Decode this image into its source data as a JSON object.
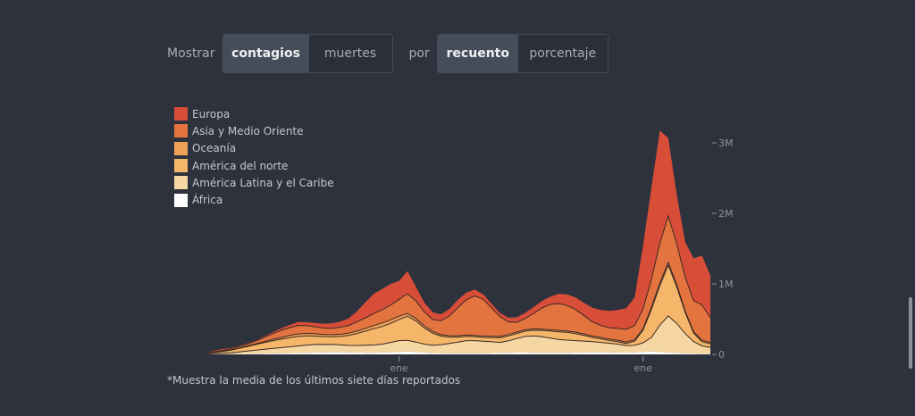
{
  "controls": {
    "show_label": "Mostrar",
    "show_options": [
      {
        "label": "contagios",
        "active": true
      },
      {
        "label": "muertes",
        "active": false
      }
    ],
    "by_label": "por",
    "by_options": [
      {
        "label": "recuento",
        "active": true
      },
      {
        "label": "porcentaje",
        "active": false
      }
    ]
  },
  "footnote": "*Muestra la media de los últimos siete días reportados",
  "chart_data": {
    "type": "area",
    "stacked": true,
    "title": "",
    "xlabel": "",
    "ylabel": "",
    "x": [
      0,
      2,
      4,
      6,
      8,
      10,
      12,
      14,
      16,
      18,
      20,
      22,
      24,
      26,
      28,
      30,
      32,
      34,
      36,
      38,
      40,
      42,
      44,
      46,
      48,
      50,
      52,
      54,
      56,
      58,
      60,
      62,
      64,
      66,
      68,
      70,
      72,
      74,
      76,
      78,
      80,
      82,
      84,
      86,
      88,
      90,
      92,
      94,
      96,
      98,
      100,
      102,
      104,
      106,
      108,
      110,
      112,
      114,
      116,
      118,
      120
    ],
    "x_unit": "weeks since start",
    "x_ticks": [
      {
        "value": 46,
        "label": "ene"
      },
      {
        "value": 104,
        "label": "ene"
      }
    ],
    "y_ticks": [
      {
        "value": 0,
        "label": "0"
      },
      {
        "value": 1000000,
        "label": "1M"
      },
      {
        "value": 2000000,
        "label": "2M"
      },
      {
        "value": 3000000,
        "label": "3M"
      }
    ],
    "ylim": [
      0,
      3300000
    ],
    "xlim": [
      0,
      120
    ],
    "legend_position": "top-left",
    "series": [
      {
        "name": "África",
        "color": "#ffffff",
        "values": [
          0,
          1000,
          2000,
          3000,
          5000,
          8000,
          10000,
          12000,
          14000,
          16000,
          18000,
          20000,
          22000,
          25000,
          28000,
          30000,
          30000,
          28000,
          26000,
          24000,
          24000,
          26000,
          30000,
          35000,
          40000,
          35000,
          25000,
          20000,
          18000,
          16000,
          15000,
          15000,
          15000,
          16000,
          18000,
          20000,
          22000,
          25000,
          25000,
          22000,
          20000,
          20000,
          20000,
          22000,
          25000,
          28000,
          30000,
          30000,
          28000,
          26000,
          25000,
          28000,
          35000,
          40000,
          35000,
          25000,
          20000,
          15000,
          12000,
          10000,
          10000
        ]
      },
      {
        "name": "América Latina y el Caribe",
        "color": "#f6d7a3",
        "values": [
          5000,
          10000,
          15000,
          20000,
          30000,
          40000,
          50000,
          60000,
          70000,
          80000,
          90000,
          100000,
          110000,
          115000,
          115000,
          110000,
          105000,
          100000,
          100000,
          105000,
          110000,
          120000,
          140000,
          160000,
          160000,
          140000,
          120000,
          110000,
          120000,
          140000,
          160000,
          180000,
          180000,
          170000,
          160000,
          150000,
          170000,
          200000,
          230000,
          240000,
          230000,
          210000,
          190000,
          180000,
          170000,
          160000,
          150000,
          140000,
          130000,
          120000,
          100000,
          100000,
          130000,
          200000,
          380000,
          520000,
          420000,
          280000,
          170000,
          110000,
          90000
        ]
      },
      {
        "name": "América del norte",
        "color": "#f5b66a",
        "values": [
          5000,
          15000,
          25000,
          35000,
          50000,
          65000,
          80000,
          95000,
          110000,
          120000,
          130000,
          135000,
          130000,
          120000,
          110000,
          110000,
          120000,
          140000,
          170000,
          200000,
          230000,
          250000,
          270000,
          300000,
          340000,
          300000,
          230000,
          170000,
          120000,
          90000,
          70000,
          60000,
          55000,
          55000,
          60000,
          65000,
          70000,
          70000,
          75000,
          80000,
          90000,
          100000,
          110000,
          110000,
          100000,
          80000,
          60000,
          50000,
          40000,
          35000,
          30000,
          60000,
          180000,
          400000,
          560000,
          720000,
          520000,
          300000,
          120000,
          60000,
          50000
        ]
      },
      {
        "name": "Oceanía",
        "color": "#efa057",
        "values": [
          1000,
          2000,
          3000,
          4000,
          6000,
          8000,
          10000,
          15000,
          20000,
          25000,
          30000,
          35000,
          35000,
          32000,
          30000,
          30000,
          30000,
          32000,
          35000,
          40000,
          45000,
          50000,
          50000,
          45000,
          40000,
          35000,
          30000,
          25000,
          20000,
          20000,
          20000,
          20000,
          20000,
          20000,
          20000,
          20000,
          20000,
          20000,
          20000,
          20000,
          20000,
          20000,
          20000,
          20000,
          20000,
          20000,
          20000,
          20000,
          20000,
          20000,
          20000,
          20000,
          20000,
          30000,
          40000,
          40000,
          30000,
          20000,
          20000,
          20000,
          20000
        ]
      },
      {
        "name": "Asia y Medio Oriente",
        "color": "#e4743f",
        "values": [
          4000,
          8000,
          12000,
          16000,
          20000,
          30000,
          40000,
          60000,
          80000,
          100000,
          110000,
          120000,
          110000,
          100000,
          90000,
          90000,
          100000,
          110000,
          130000,
          150000,
          170000,
          190000,
          210000,
          240000,
          280000,
          250000,
          200000,
          170000,
          200000,
          280000,
          400000,
          500000,
          560000,
          520000,
          400000,
          280000,
          180000,
          140000,
          160000,
          220000,
          300000,
          360000,
          380000,
          360000,
          320000,
          260000,
          200000,
          170000,
          160000,
          170000,
          180000,
          200000,
          280000,
          400000,
          560000,
          660000,
          580000,
          480000,
          440000,
          500000,
          350000
        ]
      },
      {
        "name": "Europa",
        "color": "#d84d38",
        "values": [
          5000,
          15000,
          20000,
          15000,
          10000,
          10000,
          10000,
          15000,
          20000,
          30000,
          40000,
          50000,
          50000,
          55000,
          60000,
          70000,
          80000,
          100000,
          150000,
          220000,
          280000,
          290000,
          300000,
          260000,
          320000,
          200000,
          130000,
          100000,
          90000,
          100000,
          110000,
          100000,
          90000,
          70000,
          60000,
          50000,
          60000,
          70000,
          80000,
          90000,
          100000,
          110000,
          140000,
          160000,
          170000,
          180000,
          200000,
          220000,
          240000,
          260000,
          300000,
          400000,
          900000,
          1300000,
          1600000,
          1100000,
          700000,
          500000,
          600000,
          700000,
          600000
        ]
      }
    ]
  }
}
